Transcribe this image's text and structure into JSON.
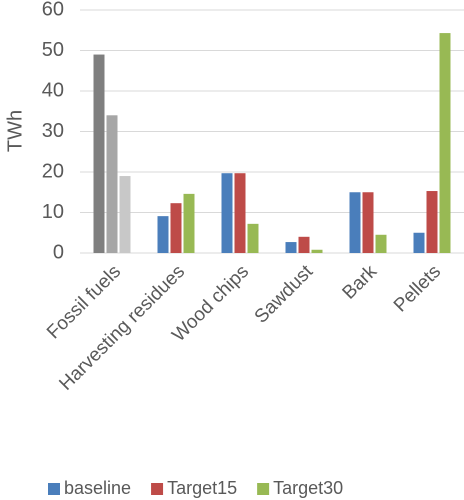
{
  "chart_data": {
    "type": "bar",
    "y_label": "TWh",
    "categories": [
      "Fossil fuels",
      "Harvesting residues",
      "Wood chips",
      "Sawdust",
      "Bark",
      "Pellets"
    ],
    "series": [
      {
        "name": "baseline",
        "color": "#4a7ebb",
        "colors": [
          "#7f7f7f",
          "#4a7ebb",
          "#4a7ebb",
          "#4a7ebb",
          "#4a7ebb",
          "#4a7ebb"
        ],
        "values": [
          49,
          9.1,
          19.7,
          2.7,
          15,
          5
        ]
      },
      {
        "name": "Target15",
        "color": "#be4b48",
        "colors": [
          "#a6a6a6",
          "#be4b48",
          "#be4b48",
          "#be4b48",
          "#be4b48",
          "#be4b48"
        ],
        "values": [
          34,
          12.3,
          19.7,
          4,
          15,
          15.3
        ]
      },
      {
        "name": "Target30",
        "color": "#98b954",
        "colors": [
          "#c8c8c8",
          "#98b954",
          "#98b954",
          "#98b954",
          "#98b954",
          "#98b954"
        ],
        "values": [
          19,
          14.6,
          7.2,
          0.8,
          4.5,
          54.3
        ]
      }
    ],
    "ylim": [
      0,
      60
    ],
    "yticks": [
      0,
      10,
      20,
      30,
      40,
      50,
      60
    ],
    "grid": true,
    "legend": "bottom"
  }
}
